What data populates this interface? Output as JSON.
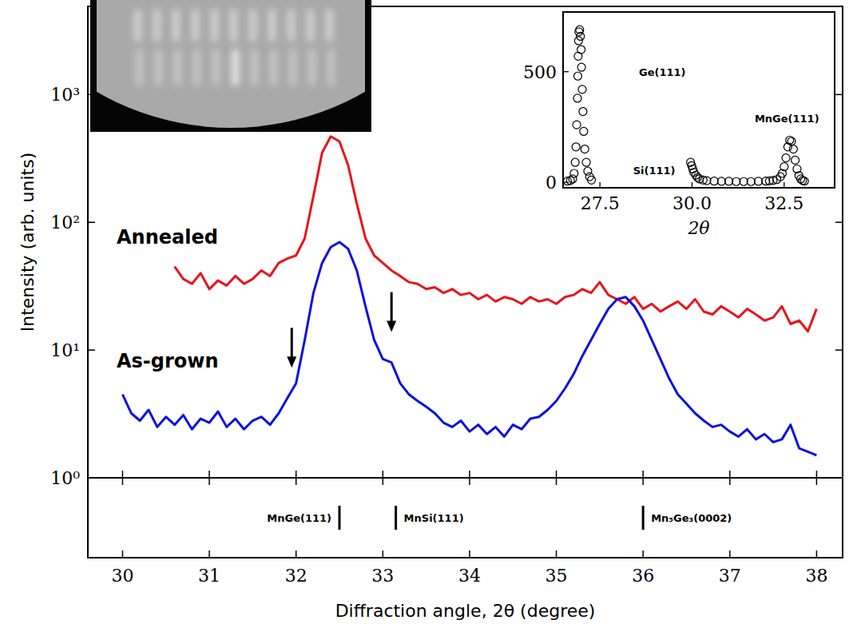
{
  "chart_data": [
    {
      "type": "line",
      "x_label": "Diffraction angle, 2θ (degree)",
      "y_label": "Intensity (arb. units)",
      "log": "y",
      "xlim": [
        29.6,
        38.3
      ],
      "xticks": [
        30,
        31,
        32,
        33,
        34,
        35,
        36,
        37,
        38
      ],
      "ylim": [
        1,
        4900
      ],
      "yticks": [
        {
          "value": 1,
          "label": "10⁰"
        },
        {
          "value": 10,
          "label": "10¹"
        },
        {
          "value": 100,
          "label": "10²"
        },
        {
          "value": 1000,
          "label": "10³"
        }
      ],
      "x": [
        30,
        30.1,
        30.2,
        30.3,
        30.4,
        30.5,
        30.6,
        30.7,
        30.8,
        30.9,
        31,
        31.1,
        31.2,
        31.3,
        31.4,
        31.5,
        31.6,
        31.7,
        31.8,
        31.9,
        32,
        32.1,
        32.2,
        32.3,
        32.4,
        32.5,
        32.6,
        32.7,
        32.8,
        32.9,
        33,
        33.1,
        33.2,
        33.3,
        33.4,
        33.5,
        33.6,
        33.7,
        33.8,
        33.9,
        34,
        34.1,
        34.2,
        34.3,
        34.4,
        34.5,
        34.6,
        34.7,
        34.8,
        34.9,
        35,
        35.1,
        35.2,
        35.3,
        35.4,
        35.5,
        35.6,
        35.7,
        35.8,
        35.9,
        36,
        36.1,
        36.2,
        36.3,
        36.4,
        36.5,
        36.6,
        36.7,
        36.8,
        36.9,
        37,
        37.1,
        37.2,
        37.3,
        37.4,
        37.5,
        37.6,
        37.7,
        37.8,
        37.9,
        38
      ],
      "series": [
        {
          "name": "Annealed",
          "color": "#e8141c",
          "values": [
            null,
            null,
            null,
            null,
            null,
            null,
            45,
            36,
            33,
            40,
            30,
            35,
            32,
            38,
            33,
            36,
            42,
            38,
            48,
            52,
            55,
            75,
            160,
            350,
            470,
            430,
            280,
            140,
            75,
            55,
            48,
            42,
            38,
            34,
            33,
            30,
            31,
            28,
            30,
            27,
            28,
            25,
            27,
            24,
            26,
            25,
            23,
            26,
            24,
            25,
            23,
            26,
            27,
            30,
            28,
            34,
            27,
            25,
            23,
            26,
            21,
            23,
            20,
            22,
            24,
            21,
            25,
            20,
            19,
            22,
            20,
            18,
            21,
            19,
            17,
            18,
            22,
            16,
            17,
            14,
            21
          ]
        },
        {
          "name": "As-grown",
          "color": "#0c12e0",
          "values": [
            4.5,
            3.2,
            2.8,
            3.4,
            2.5,
            3.0,
            2.6,
            3.1,
            2.4,
            2.9,
            2.7,
            3.3,
            2.5,
            2.9,
            2.4,
            2.8,
            3.0,
            2.6,
            3.2,
            4.2,
            5.5,
            12,
            28,
            48,
            64,
            70,
            62,
            42,
            22,
            12,
            8.5,
            8.0,
            5.5,
            4.5,
            4.0,
            3.6,
            3.2,
            2.7,
            2.5,
            2.8,
            2.3,
            2.6,
            2.2,
            2.5,
            2.1,
            2.6,
            2.4,
            2.9,
            3.0,
            3.4,
            4.0,
            5.0,
            6.5,
            9.0,
            12,
            16,
            21,
            25,
            26,
            22,
            17,
            12,
            8.5,
            6.0,
            4.5,
            3.8,
            3.2,
            2.8,
            2.5,
            2.6,
            2.3,
            2.1,
            2.4,
            2.0,
            2.2,
            1.9,
            2.0,
            2.6,
            1.7,
            1.6,
            1.5
          ]
        }
      ],
      "arrows": [
        31.95,
        33.1
      ],
      "references": [
        {
          "label": "MnGe(111)",
          "x": 32.5
        },
        {
          "label": "MnSi(111)",
          "x": 33.15
        },
        {
          "label": "Mn₅Ge₃(0002)",
          "x": 36.0
        }
      ]
    },
    {
      "type": "scatter",
      "x_label": "2θ",
      "marker": "circle",
      "xlim": [
        26.5,
        33.87
      ],
      "xticks": [
        27.5,
        {
          "value": 30,
          "label": "30.0"
        },
        32.5
      ],
      "ylim": [
        -25,
        770
      ],
      "yticks": [
        0,
        500
      ],
      "x": [
        26.62,
        26.7,
        26.76,
        26.8,
        26.83,
        26.85,
        26.87,
        26.89,
        26.9,
        26.91,
        26.92,
        26.93,
        26.95,
        26.97,
        26.99,
        27.0,
        27.02,
        27.04,
        27.06,
        27.09,
        27.13,
        27.17,
        27.22,
        27.27,
        29.96,
        29.99,
        30.02,
        30.05,
        30.1,
        30.15,
        30.2,
        30.3,
        30.4,
        30.6,
        30.8,
        31.0,
        31.2,
        31.4,
        31.6,
        31.8,
        32.0,
        32.1,
        32.2,
        32.3,
        32.4,
        32.45,
        32.5,
        32.55,
        32.6,
        32.65,
        32.7,
        32.75,
        32.8,
        32.85,
        32.9,
        32.95,
        33.0,
        33.05
      ],
      "values": [
        5,
        8,
        15,
        40,
        90,
        160,
        260,
        380,
        480,
        570,
        640,
        680,
        690,
        660,
        600,
        520,
        420,
        320,
        230,
        150,
        90,
        50,
        25,
        10,
        90,
        75,
        60,
        45,
        32,
        22,
        15,
        10,
        7,
        5,
        4,
        4,
        3,
        3,
        3,
        4,
        5,
        6,
        8,
        12,
        25,
        40,
        70,
        110,
        160,
        190,
        185,
        150,
        100,
        60,
        30,
        15,
        8,
        5
      ],
      "annotations": [
        {
          "text": "Ge(111)",
          "x": 28.56,
          "y": 500
        },
        {
          "text": "Si(111)",
          "x": 28.4,
          "y": 55
        },
        {
          "text": "MnGe(111)",
          "x": 31.7,
          "y": 290
        }
      ]
    }
  ]
}
